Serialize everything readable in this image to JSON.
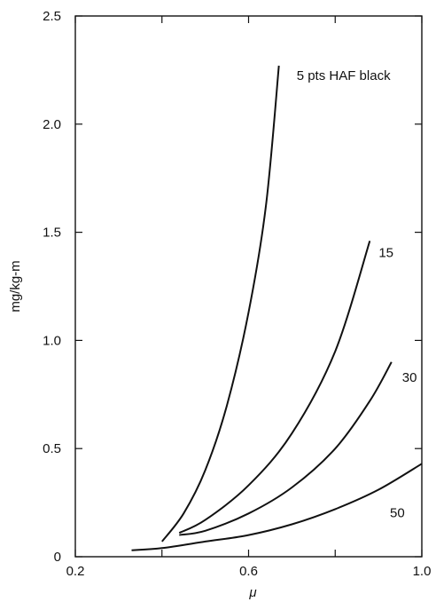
{
  "chart_data": {
    "type": "line",
    "title": "",
    "xlabel": "μ",
    "ylabel": "mg/kg-m",
    "xlim": [
      0.2,
      1.0
    ],
    "ylim": [
      0,
      2.5
    ],
    "x_ticks": [
      0.2,
      0.6,
      1.0
    ],
    "x_tick_labels": [
      "0.2",
      "0.6",
      "1.0"
    ],
    "x_minor_ticks": [
      0.4,
      0.8
    ],
    "y_ticks": [
      0,
      0.5,
      1.0,
      1.5,
      2.0,
      2.5
    ],
    "y_tick_labels": [
      "0",
      "0.5",
      "1.0",
      "1.5",
      "2.0",
      "2.5"
    ],
    "grid": false,
    "legend": "none",
    "line_color": "#111111",
    "series": [
      {
        "name": "5 pts HAF black",
        "x": [
          0.4,
          0.45,
          0.5,
          0.55,
          0.6,
          0.64,
          0.67
        ],
        "y": [
          0.07,
          0.2,
          0.4,
          0.7,
          1.13,
          1.62,
          2.27
        ]
      },
      {
        "name": "15",
        "x": [
          0.44,
          0.5,
          0.6,
          0.7,
          0.8,
          0.88
        ],
        "y": [
          0.11,
          0.17,
          0.33,
          0.57,
          0.95,
          1.46
        ]
      },
      {
        "name": "30",
        "x": [
          0.44,
          0.5,
          0.6,
          0.7,
          0.8,
          0.88,
          0.93
        ],
        "y": [
          0.1,
          0.12,
          0.2,
          0.32,
          0.5,
          0.72,
          0.9
        ]
      },
      {
        "name": "50",
        "x": [
          0.33,
          0.4,
          0.5,
          0.6,
          0.7,
          0.8,
          0.9,
          1.0
        ],
        "y": [
          0.03,
          0.04,
          0.07,
          0.1,
          0.15,
          0.22,
          0.31,
          0.43
        ]
      }
    ]
  }
}
